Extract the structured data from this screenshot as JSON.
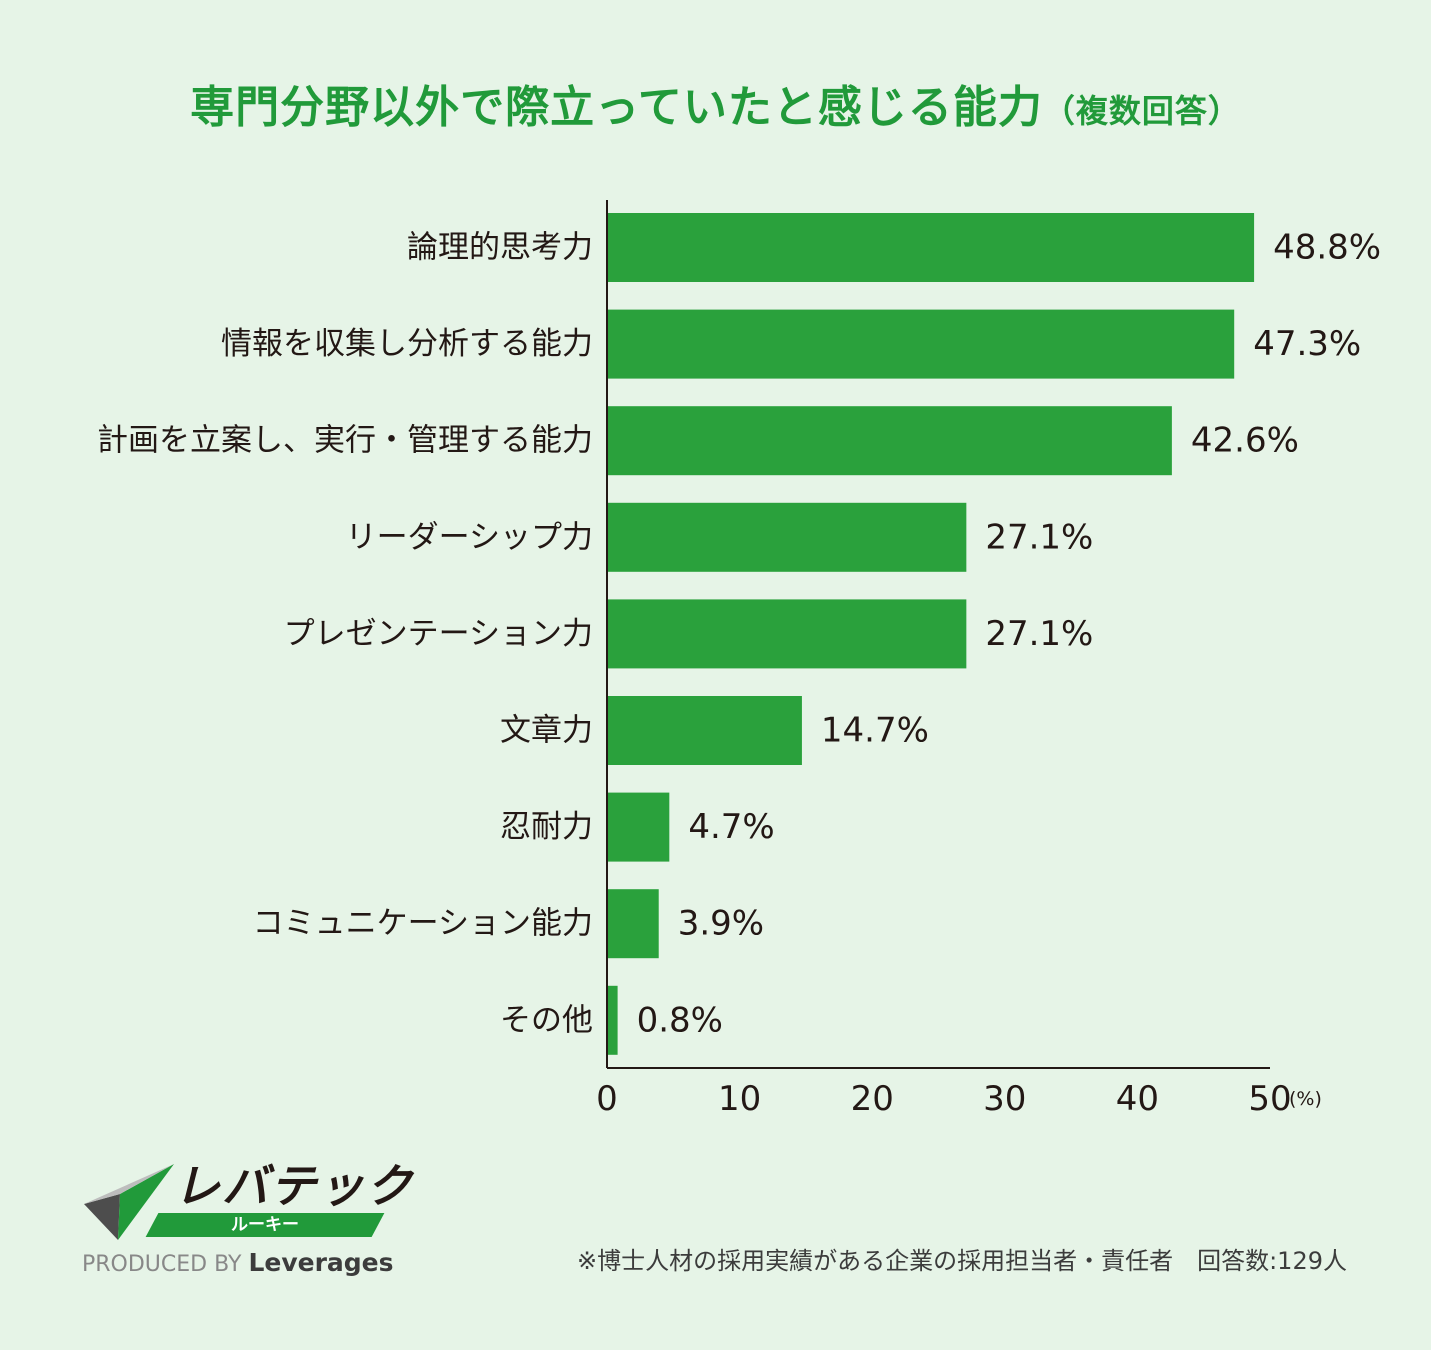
{
  "title": "専門分野以外で際立っていたと感じる能力",
  "title_note": "（複数回答）",
  "chart_data": {
    "type": "bar",
    "orientation": "horizontal",
    "categories": [
      "論理的思考力",
      "情報を収集し分析する能力",
      "計画を立案し、実行・管理する能力",
      "リーダーシップ力",
      "プレゼンテーション力",
      "文章力",
      "忍耐力",
      "コミュニケーション能力",
      "その他"
    ],
    "values": [
      48.8,
      47.3,
      42.6,
      27.1,
      27.1,
      14.7,
      4.7,
      3.9,
      0.8
    ],
    "value_labels": [
      "48.8%",
      "47.3%",
      "42.6%",
      "27.1%",
      "27.1%",
      "14.7%",
      "4.7%",
      "3.9%",
      "0.8%"
    ],
    "xlim": [
      0,
      50
    ],
    "xticks": [
      "0",
      "10",
      "20",
      "30",
      "40",
      "50"
    ],
    "x_unit": "(%)",
    "grid": false,
    "bar_color": "#2aa13c"
  },
  "logo": {
    "wordmark": "レバテック",
    "sub": "ルーキー",
    "produced_by": "PRODUCED BY",
    "brand": "Leverages"
  },
  "footnote": "※博士人材の採用実績がある企業の採用担当者・責任者　回答数:129人"
}
